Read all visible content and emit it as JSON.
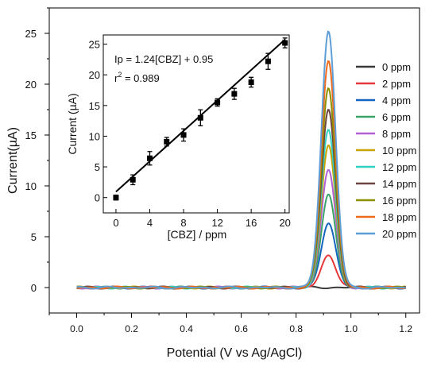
{
  "chart_data": [
    {
      "type": "line",
      "xlabel": "Potential (V vs Ag/AgCl)",
      "ylabel": "Current(µA)",
      "xlim": [
        -0.1,
        1.25
      ],
      "ylim": [
        -2.5,
        27.5
      ],
      "xticks": [
        "0.0",
        "0.2",
        "0.4",
        "0.6",
        "0.8",
        "1.0",
        "1.2"
      ],
      "yticks": [
        "0",
        "5",
        "10",
        "15",
        "20",
        "25"
      ],
      "peak_potential": 0.918,
      "legend_position": "right",
      "series": [
        {
          "name": "0 ppm",
          "peak_current": 0.0,
          "color": "#3a3a3a"
        },
        {
          "name": "2 ppm",
          "peak_current": 3.2,
          "color": "#e8383b"
        },
        {
          "name": "4 ppm",
          "peak_current": 6.4,
          "color": "#1565c0"
        },
        {
          "name": "6 ppm",
          "peak_current": 9.1,
          "color": "#3aa36a"
        },
        {
          "name": "8 ppm",
          "peak_current": 11.6,
          "color": "#b061d6"
        },
        {
          "name": "10 ppm",
          "peak_current": 13.9,
          "color": "#c8a400"
        },
        {
          "name": "12 ppm",
          "peak_current": 15.5,
          "color": "#33d0c4"
        },
        {
          "name": "14 ppm",
          "peak_current": 17.5,
          "color": "#6b4440"
        },
        {
          "name": "16 ppm",
          "peak_current": 19.6,
          "color": "#8c8f00"
        },
        {
          "name": "18 ppm",
          "peak_current": 22.4,
          "color": "#ef6a1b"
        },
        {
          "name": "20 ppm",
          "peak_current": 25.2,
          "color": "#5e9dd6"
        }
      ]
    },
    {
      "type": "scatter",
      "xlabel": "[CBZ] / ppm",
      "ylabel": "Current (µA)",
      "xlim": [
        -1.5,
        20.5
      ],
      "ylim": [
        -2.5,
        26.5
      ],
      "xticks": [
        "0",
        "4",
        "8",
        "12",
        "16",
        "20"
      ],
      "yticks": [
        "0",
        "5",
        "10",
        "15",
        "20",
        "25"
      ],
      "equation": "Ip = 1.24[CBZ] + 0.95",
      "r2_label": "r",
      "r2_sup": "2",
      "r2_value": " = 0.989",
      "fit": {
        "slope": 1.24,
        "intercept": 0.95,
        "x_range": [
          0,
          20
        ]
      },
      "points": [
        {
          "x": 0,
          "y": 0.0,
          "err": 0.4
        },
        {
          "x": 2,
          "y": 2.9,
          "err": 0.8
        },
        {
          "x": 4,
          "y": 6.4,
          "err": 1.1
        },
        {
          "x": 6,
          "y": 9.1,
          "err": 0.7
        },
        {
          "x": 8,
          "y": 10.2,
          "err": 1.0
        },
        {
          "x": 10,
          "y": 13.0,
          "err": 1.3
        },
        {
          "x": 12,
          "y": 15.5,
          "err": 0.6
        },
        {
          "x": 14,
          "y": 16.9,
          "err": 0.9
        },
        {
          "x": 16,
          "y": 18.8,
          "err": 0.8
        },
        {
          "x": 18,
          "y": 22.2,
          "err": 1.3
        },
        {
          "x": 20,
          "y": 25.2,
          "err": 0.8
        }
      ]
    }
  ]
}
